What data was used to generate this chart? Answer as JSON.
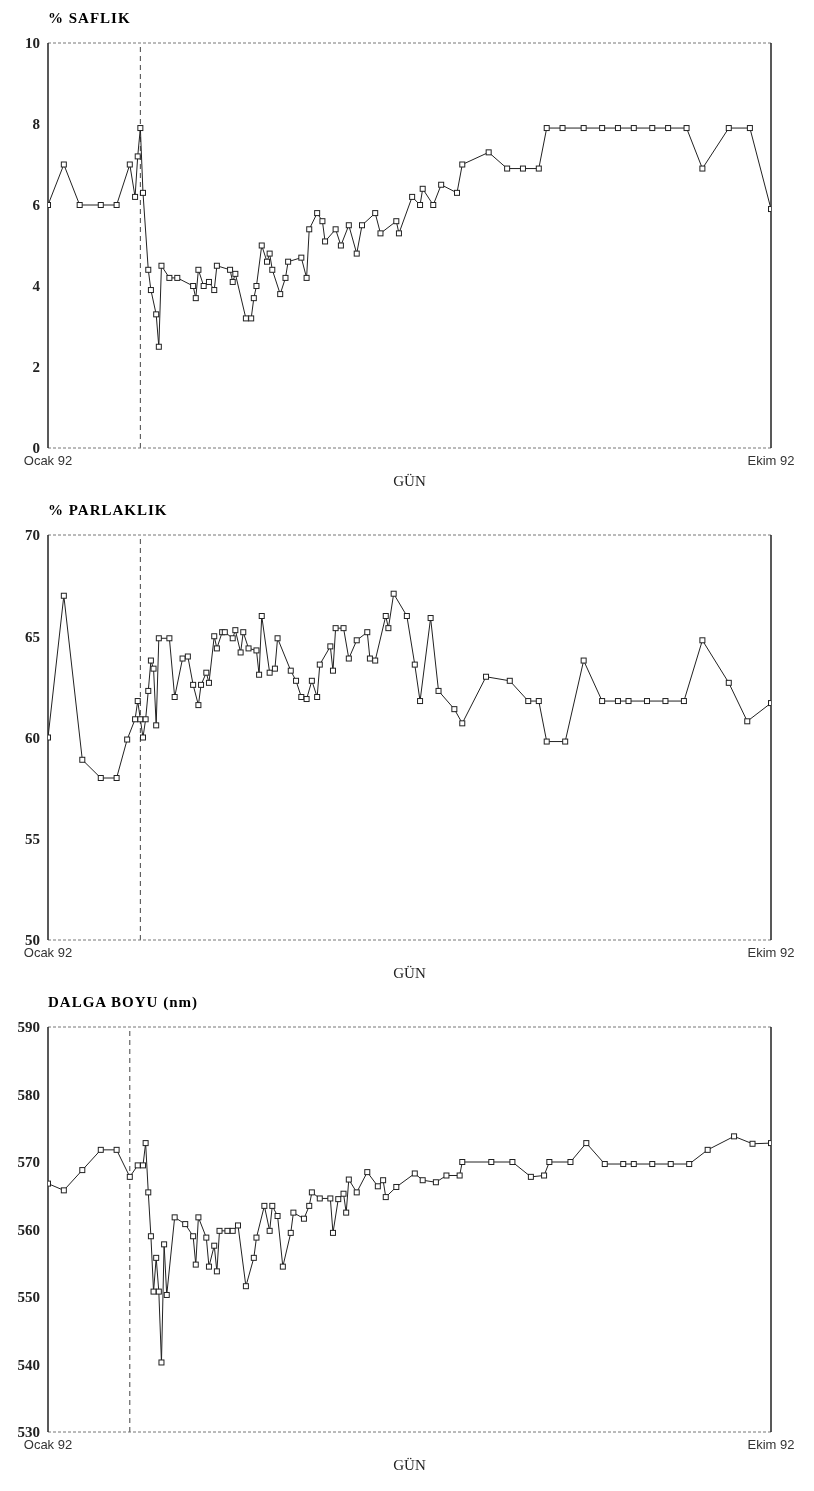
{
  "chart_data": [
    {
      "type": "line",
      "title": "% SAFLIK",
      "xlabel": "GÜN",
      "marker": "square",
      "line_style": "solid",
      "xlim": [
        "1992-01-01",
        "1992-10-01"
      ],
      "xticks": [
        {
          "value": "1992-01-01",
          "label": "Ocak 92"
        },
        {
          "value": "1992-10-01",
          "label": "Ekim 92"
        }
      ],
      "ylim": [
        0,
        10
      ],
      "yticks": [
        0,
        2,
        4,
        6,
        8,
        10
      ],
      "ref_lines": [
        {
          "axis": "x",
          "value": "1992-02-05",
          "line_style": "dashed",
          "color": "#444444"
        }
      ],
      "series": [
        {
          "color": "#222222",
          "x": [
            "1992-01-01",
            "1992-01-07",
            "1992-01-13",
            "1992-01-21",
            "1992-01-27",
            "1992-02-01",
            "1992-02-03",
            "1992-02-04",
            "1992-02-05",
            "1992-02-06",
            "1992-02-08",
            "1992-02-09",
            "1992-02-11",
            "1992-02-12",
            "1992-02-13",
            "1992-02-16",
            "1992-02-19",
            "1992-02-25",
            "1992-02-26",
            "1992-02-27",
            "1992-02-29",
            "1992-03-02",
            "1992-03-04",
            "1992-03-05",
            "1992-03-10",
            "1992-03-11",
            "1992-03-12",
            "1992-03-16",
            "1992-03-18",
            "1992-03-19",
            "1992-03-20",
            "1992-03-22",
            "1992-03-24",
            "1992-03-25",
            "1992-03-26",
            "1992-03-29",
            "1992-03-31",
            "1992-04-01",
            "1992-04-06",
            "1992-04-08",
            "1992-04-09",
            "1992-04-12",
            "1992-04-14",
            "1992-04-15",
            "1992-04-19",
            "1992-04-21",
            "1992-04-24",
            "1992-04-27",
            "1992-04-29",
            "1992-05-04",
            "1992-05-06",
            "1992-05-12",
            "1992-05-13",
            "1992-05-18",
            "1992-05-21",
            "1992-05-22",
            "1992-05-26",
            "1992-05-29",
            "1992-06-04",
            "1992-06-06",
            "1992-06-16",
            "1992-06-23",
            "1992-06-29",
            "1992-07-05",
            "1992-07-08",
            "1992-07-14",
            "1992-07-22",
            "1992-07-29",
            "1992-08-04",
            "1992-08-10",
            "1992-08-17",
            "1992-08-23",
            "1992-08-30",
            "1992-09-05",
            "1992-09-15",
            "1992-09-23",
            "1992-10-01"
          ],
          "values": [
            6.0,
            7.0,
            6.0,
            6.0,
            6.0,
            7.0,
            6.2,
            7.2,
            7.9,
            6.3,
            4.4,
            3.9,
            3.3,
            2.5,
            4.5,
            4.2,
            4.2,
            4.0,
            3.7,
            4.4,
            4.0,
            4.1,
            3.9,
            4.5,
            4.4,
            4.1,
            4.3,
            3.2,
            3.2,
            3.7,
            4.0,
            5.0,
            4.6,
            4.8,
            4.4,
            3.8,
            4.2,
            4.6,
            4.7,
            4.2,
            5.4,
            5.8,
            5.6,
            5.1,
            5.4,
            5.0,
            5.5,
            4.8,
            5.5,
            5.8,
            5.3,
            5.6,
            5.3,
            6.2,
            6.0,
            6.4,
            6.0,
            6.5,
            6.3,
            7.0,
            7.3,
            6.9,
            6.9,
            6.9,
            7.9,
            7.9,
            7.9,
            7.9,
            7.9,
            7.9,
            7.9,
            7.9,
            7.9,
            6.9,
            7.9,
            7.9,
            5.9
          ]
        }
      ]
    },
    {
      "type": "line",
      "title": "% PARLAKLIK",
      "xlabel": "GÜN",
      "marker": "square",
      "line_style": "solid",
      "xlim": [
        "1992-01-01",
        "1992-10-01"
      ],
      "xticks": [
        {
          "value": "1992-01-01",
          "label": "Ocak 92"
        },
        {
          "value": "1992-10-01",
          "label": "Ekim 92"
        }
      ],
      "ylim": [
        50,
        70
      ],
      "yticks": [
        50,
        55,
        60,
        65,
        70
      ],
      "ref_lines": [
        {
          "axis": "x",
          "value": "1992-02-05",
          "line_style": "dashed",
          "color": "#444444"
        }
      ],
      "series": [
        {
          "color": "#222222",
          "x": [
            "1992-01-01",
            "1992-01-07",
            "1992-01-14",
            "1992-01-21",
            "1992-01-27",
            "1992-01-31",
            "1992-02-03",
            "1992-02-04",
            "1992-02-05",
            "1992-02-06",
            "1992-02-07",
            "1992-02-08",
            "1992-02-09",
            "1992-02-10",
            "1992-02-11",
            "1992-02-12",
            "1992-02-16",
            "1992-02-18",
            "1992-02-21",
            "1992-02-23",
            "1992-02-25",
            "1992-02-27",
            "1992-02-28",
            "1992-03-01",
            "1992-03-02",
            "1992-03-04",
            "1992-03-05",
            "1992-03-07",
            "1992-03-08",
            "1992-03-11",
            "1992-03-12",
            "1992-03-14",
            "1992-03-15",
            "1992-03-17",
            "1992-03-20",
            "1992-03-21",
            "1992-03-22",
            "1992-03-25",
            "1992-03-27",
            "1992-03-28",
            "1992-04-02",
            "1992-04-04",
            "1992-04-06",
            "1992-04-08",
            "1992-04-10",
            "1992-04-12",
            "1992-04-13",
            "1992-04-17",
            "1992-04-18",
            "1992-04-19",
            "1992-04-22",
            "1992-04-24",
            "1992-04-27",
            "1992-05-01",
            "1992-05-02",
            "1992-05-04",
            "1992-05-08",
            "1992-05-09",
            "1992-05-11",
            "1992-05-16",
            "1992-05-19",
            "1992-05-21",
            "1992-05-25",
            "1992-05-28",
            "1992-06-03",
            "1992-06-06",
            "1992-06-15",
            "1992-06-24",
            "1992-07-01",
            "1992-07-05",
            "1992-07-08",
            "1992-07-15",
            "1992-07-22",
            "1992-07-29",
            "1992-08-04",
            "1992-08-08",
            "1992-08-15",
            "1992-08-22",
            "1992-08-29",
            "1992-09-05",
            "1992-09-15",
            "1992-09-22",
            "1992-10-01"
          ],
          "values": [
            60.0,
            67.0,
            58.9,
            58.0,
            58.0,
            59.9,
            60.9,
            61.8,
            60.9,
            60.0,
            60.9,
            62.3,
            63.8,
            63.4,
            60.6,
            64.9,
            64.9,
            62.0,
            63.9,
            64.0,
            62.6,
            61.6,
            62.6,
            63.2,
            62.7,
            65.0,
            64.4,
            65.2,
            65.2,
            64.9,
            65.3,
            64.2,
            65.2,
            64.4,
            64.3,
            63.1,
            66.0,
            63.2,
            63.4,
            64.9,
            63.3,
            62.8,
            62.0,
            61.9,
            62.8,
            62.0,
            63.6,
            64.5,
            63.3,
            65.4,
            65.4,
            63.9,
            64.8,
            65.2,
            63.9,
            63.8,
            66.0,
            65.4,
            67.1,
            66.0,
            63.6,
            61.8,
            65.9,
            62.3,
            61.4,
            60.7,
            63.0,
            62.8,
            61.8,
            61.8,
            59.8,
            59.8,
            63.8,
            61.8,
            61.8,
            61.8,
            61.8,
            61.8,
            61.8,
            64.8,
            62.7,
            60.8,
            61.7
          ]
        }
      ]
    },
    {
      "type": "line",
      "title": "DALGA BOYU (nm)",
      "xlabel": "GÜN",
      "marker": "square",
      "line_style": "solid",
      "xlim": [
        "1992-01-01",
        "1992-10-01"
      ],
      "xticks": [
        {
          "value": "1992-01-01",
          "label": "Ocak 92"
        },
        {
          "value": "1992-10-01",
          "label": "Ekim 92"
        }
      ],
      "ylim": [
        530,
        590
      ],
      "yticks": [
        530,
        540,
        550,
        560,
        570,
        580,
        590
      ],
      "ref_lines": [
        {
          "axis": "x",
          "value": "1992-02-01",
          "line_style": "dashed",
          "color": "#444444"
        }
      ],
      "series": [
        {
          "color": "#222222",
          "x": [
            "1992-01-01",
            "1992-01-07",
            "1992-01-14",
            "1992-01-21",
            "1992-01-27",
            "1992-02-01",
            "1992-02-04",
            "1992-02-06",
            "1992-02-07",
            "1992-02-08",
            "1992-02-09",
            "1992-02-10",
            "1992-02-11",
            "1992-02-12",
            "1992-02-13",
            "1992-02-14",
            "1992-02-15",
            "1992-02-18",
            "1992-02-22",
            "1992-02-25",
            "1992-02-26",
            "1992-02-27",
            "1992-03-01",
            "1992-03-02",
            "1992-03-04",
            "1992-03-05",
            "1992-03-06",
            "1992-03-09",
            "1992-03-11",
            "1992-03-13",
            "1992-03-16",
            "1992-03-19",
            "1992-03-20",
            "1992-03-23",
            "1992-03-25",
            "1992-03-26",
            "1992-03-28",
            "1992-03-30",
            "1992-04-02",
            "1992-04-03",
            "1992-04-07",
            "1992-04-09",
            "1992-04-10",
            "1992-04-13",
            "1992-04-17",
            "1992-04-18",
            "1992-04-20",
            "1992-04-22",
            "1992-04-23",
            "1992-04-24",
            "1992-04-27",
            "1992-05-01",
            "1992-05-05",
            "1992-05-07",
            "1992-05-08",
            "1992-05-12",
            "1992-05-19",
            "1992-05-22",
            "1992-05-27",
            "1992-05-31",
            "1992-06-05",
            "1992-06-06",
            "1992-06-17",
            "1992-06-25",
            "1992-07-02",
            "1992-07-07",
            "1992-07-09",
            "1992-07-17",
            "1992-07-23",
            "1992-07-30",
            "1992-08-06",
            "1992-08-10",
            "1992-08-17",
            "1992-08-24",
            "1992-08-31",
            "1992-09-07",
            "1992-09-17",
            "1992-09-24",
            "1992-10-01"
          ],
          "values": [
            566.8,
            565.8,
            568.8,
            571.8,
            571.8,
            567.8,
            569.5,
            569.5,
            572.8,
            565.5,
            559.0,
            550.8,
            555.8,
            550.8,
            540.3,
            557.8,
            550.3,
            561.8,
            560.8,
            559.0,
            554.8,
            561.8,
            558.8,
            554.5,
            557.6,
            553.8,
            559.8,
            559.8,
            559.8,
            560.6,
            551.6,
            555.8,
            558.8,
            563.5,
            559.8,
            563.5,
            562.0,
            554.5,
            559.5,
            562.5,
            561.6,
            563.5,
            565.5,
            564.6,
            564.6,
            559.5,
            564.5,
            565.3,
            562.5,
            567.4,
            565.5,
            568.5,
            566.4,
            567.3,
            564.8,
            566.3,
            568.3,
            567.3,
            567.0,
            568.0,
            568.0,
            570.0,
            570.0,
            570.0,
            567.8,
            568.0,
            570.0,
            570.0,
            572.8,
            569.7,
            569.7,
            569.7,
            569.7,
            569.7,
            569.7,
            571.8,
            573.8,
            572.7,
            572.8
          ]
        }
      ]
    }
  ]
}
